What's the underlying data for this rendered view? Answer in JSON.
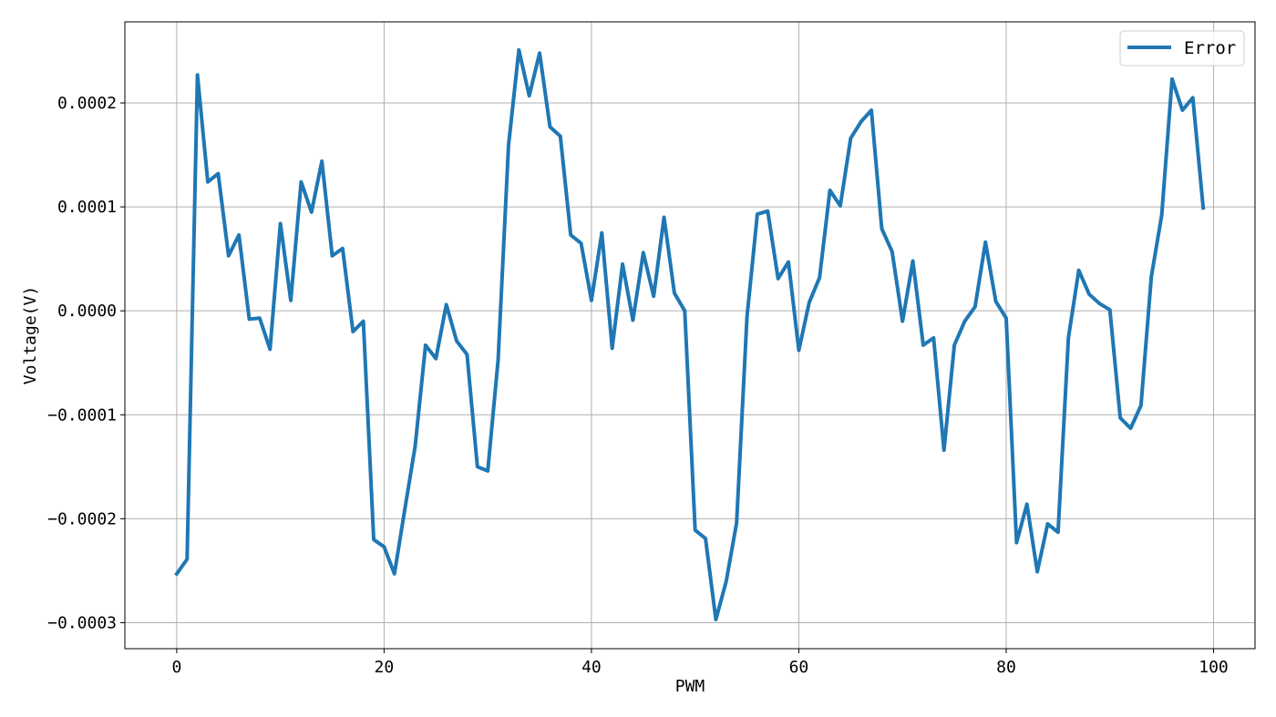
{
  "chart_data": {
    "type": "line",
    "title": "",
    "xlabel": "PWM",
    "ylabel": "Voltage(V)",
    "xlim": [
      -5,
      104
    ],
    "ylim": [
      -0.000325,
      0.000278
    ],
    "xticks": [
      0,
      20,
      40,
      60,
      80,
      100
    ],
    "xtick_labels": [
      "0",
      "20",
      "40",
      "60",
      "80",
      "100"
    ],
    "yticks": [
      -0.0003,
      -0.0002,
      -0.0001,
      0.0,
      0.0001,
      0.0002
    ],
    "ytick_labels": [
      "−0.0003",
      "−0.0002",
      "−0.0001",
      "0.0000",
      "0.0001",
      "0.0002"
    ],
    "grid": true,
    "legend_position": "top-right",
    "series": [
      {
        "name": "Error",
        "color": "#1f77b4",
        "x": [
          0,
          1,
          2,
          3,
          4,
          5,
          6,
          7,
          8,
          9,
          10,
          11,
          12,
          13,
          14,
          15,
          16,
          17,
          18,
          19,
          20,
          21,
          22,
          23,
          24,
          25,
          26,
          27,
          28,
          29,
          30,
          31,
          32,
          33,
          34,
          35,
          36,
          37,
          38,
          39,
          40,
          41,
          42,
          43,
          44,
          45,
          46,
          47,
          48,
          49,
          50,
          51,
          52,
          53,
          54,
          55,
          56,
          57,
          58,
          59,
          60,
          61,
          62,
          63,
          64,
          65,
          66,
          67,
          68,
          69,
          70,
          71,
          72,
          73,
          74,
          75,
          76,
          77,
          78,
          79,
          80,
          81,
          82,
          83,
          84,
          85,
          86,
          87,
          88,
          89,
          90,
          91,
          92,
          93,
          94,
          95,
          96,
          97,
          98,
          99
        ],
        "y": [
          -0.000253,
          -0.000239,
          0.000227,
          0.000124,
          0.000132,
          5.3e-05,
          7.3e-05,
          -8e-06,
          -7e-06,
          -3.7e-05,
          8.4e-05,
          1e-05,
          0.000124,
          9.5e-05,
          0.000144,
          5.3e-05,
          6e-05,
          -2e-05,
          -1e-05,
          -0.00022,
          -0.000227,
          -0.000253,
          -0.000191,
          -0.00013,
          -3.3e-05,
          -4.6e-05,
          6e-06,
          -2.9e-05,
          -4.2e-05,
          -0.00015,
          -0.000154,
          -4.7e-05,
          0.000159,
          0.000251,
          0.000207,
          0.000248,
          0.000177,
          0.000168,
          7.3e-05,
          6.5e-05,
          1e-05,
          7.5e-05,
          -3.6e-05,
          4.5e-05,
          -9e-06,
          5.6e-05,
          1.4e-05,
          9e-05,
          1.7e-05,
          0.0,
          -0.000211,
          -0.000219,
          -0.000297,
          -0.00026,
          -0.000204,
          -6e-06,
          9.3e-05,
          9.6e-05,
          3.1e-05,
          4.7e-05,
          -3.8e-05,
          8e-06,
          3.2e-05,
          0.000116,
          0.000101,
          0.000166,
          0.000182,
          0.000193,
          7.9e-05,
          5.7e-05,
          -1e-05,
          4.8e-05,
          -3.3e-05,
          -2.6e-05,
          -0.000134,
          -3.3e-05,
          -1e-05,
          4e-06,
          6.6e-05,
          9e-06,
          -7e-06,
          -0.000223,
          -0.000186,
          -0.000251,
          -0.000205,
          -0.000213,
          -2.6e-05,
          3.9e-05,
          1.6e-05,
          7e-06,
          1e-06,
          -0.000103,
          -0.000113,
          -9.1e-05,
          3.3e-05,
          9.2e-05,
          0.000223,
          0.000193,
          0.000205,
          9.9e-05
        ]
      }
    ]
  }
}
